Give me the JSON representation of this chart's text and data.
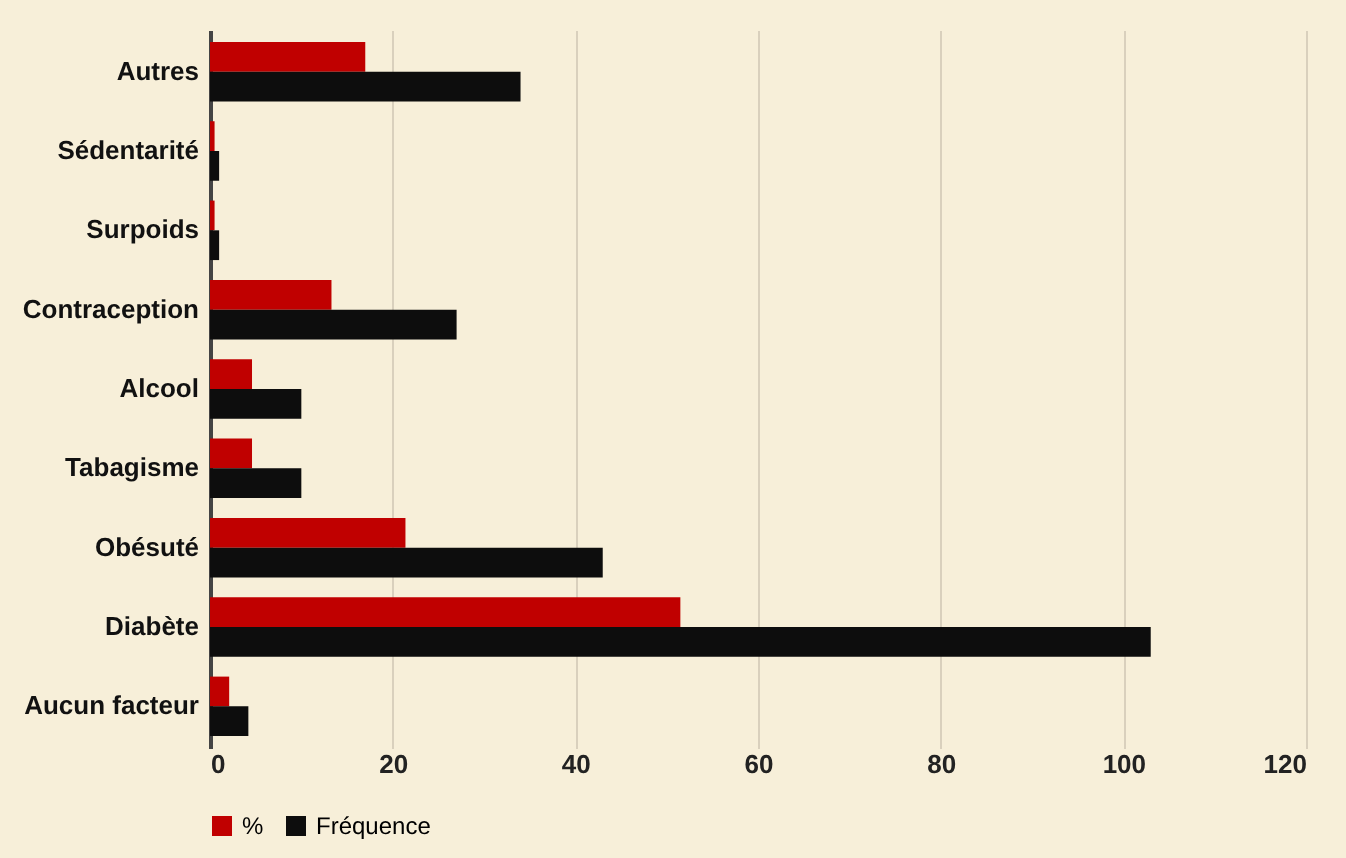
{
  "chart_data": {
    "type": "bar",
    "orientation": "horizontal",
    "categories": [
      "Autres",
      "Sédentarité",
      "Surpoids",
      "Contraception",
      "Alcool",
      "Tabagisme",
      "Obésuté",
      "Diabète",
      "Aucun facteur"
    ],
    "series": [
      {
        "name": "%",
        "color": "#c00000",
        "values": [
          17,
          0.5,
          0.5,
          13.3,
          4.6,
          4.6,
          21.4,
          51.5,
          2.1
        ]
      },
      {
        "name": "Fréquence",
        "color": "#0d0d0d",
        "values": [
          34,
          1,
          1,
          27,
          10,
          10,
          43,
          103,
          4.2
        ]
      }
    ],
    "xlim": [
      0,
      120
    ],
    "xticks": [
      0,
      20,
      40,
      60,
      80,
      100,
      120
    ],
    "grid": "x",
    "legend": "bottom"
  }
}
